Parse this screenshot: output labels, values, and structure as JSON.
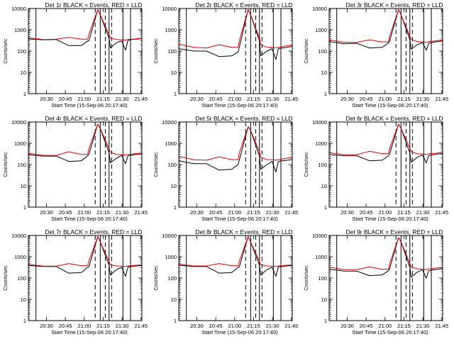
{
  "figure": {
    "panel_titles": [
      "Det 1r BLACK = Events, RED = LLD",
      "Det 2r BLACK = Events, RED = LLD",
      "Det 3r BLACK = Events, RED = LLD",
      "Det 4r BLACK = Events, RED = LLD",
      "Det 5r BLACK = Events, RED = LLD",
      "Det 6r BLACK = Events, RED = LLD",
      "Det 7r BLACK = Events, RED = LLD",
      "Det 8r BLACK = Events, RED = LLD",
      "Det 9r BLACK = Events, RED = LLD"
    ],
    "ylabel": "Counts/sec",
    "xlabel": "Start Time (15-Sep-06 20:17:40)",
    "x_ticks": [
      "20:30",
      "20:45",
      "21:00",
      "21:15",
      "21:30",
      "21:45"
    ],
    "y_ticks": [
      "1",
      "10",
      "100",
      "1000",
      "10000"
    ],
    "colors": {
      "events": "#000000",
      "lld": "#e00000",
      "frame": "#000000"
    }
  },
  "chart_data": [
    {
      "type": "line",
      "title": "Det 1r BLACK = Events, RED = LLD",
      "xlabel": "Start Time (15-Sep-06 20:17:40)",
      "ylabel": "Counts/sec",
      "y_scale": "log",
      "ylim": [
        1,
        10000
      ],
      "xlim_minutes": [
        -2,
        88
      ],
      "x": [
        -2,
        10,
        20,
        30,
        40,
        45,
        46,
        53,
        55,
        62,
        63,
        68,
        72,
        75,
        77,
        80,
        82,
        84,
        86,
        88
      ],
      "series": [
        {
          "name": "Events",
          "values": [
            370,
            340,
            350,
            180,
            180,
            300,
            300,
            9000,
            5000,
            400,
            140,
            250,
            300,
            110,
            320,
            350,
            360,
            360,
            380,
            380
          ]
        },
        {
          "name": "LLD",
          "values": [
            420,
            350,
            360,
            440,
            360,
            360,
            600,
            9000,
            5000,
            600,
            400,
            350,
            340,
            330,
            350,
            360,
            370,
            380,
            390,
            400
          ]
        }
      ]
    },
    {
      "type": "line",
      "title": "Det 2r BLACK = Events, RED = LLD",
      "xlabel": "Start Time (15-Sep-06 20:17:40)",
      "ylabel": "Counts/sec",
      "y_scale": "log",
      "ylim": [
        1,
        10000
      ],
      "xlim_minutes": [
        -2,
        88
      ],
      "x": [
        -2,
        10,
        20,
        30,
        40,
        45,
        46,
        53,
        55,
        62,
        63,
        68,
        72,
        75,
        77,
        80,
        82,
        84,
        86,
        88
      ],
      "series": [
        {
          "name": "Events",
          "values": [
            130,
            100,
            100,
            55,
            60,
            90,
            150,
            9000,
            5000,
            300,
            60,
            100,
            130,
            40,
            130,
            140,
            145,
            150,
            160,
            160
          ]
        },
        {
          "name": "LLD",
          "values": [
            210,
            150,
            140,
            200,
            150,
            150,
            300,
            9000,
            5000,
            400,
            200,
            150,
            150,
            140,
            150,
            160,
            170,
            180,
            180,
            190
          ]
        }
      ]
    },
    {
      "type": "line",
      "title": "Det 3r BLACK = Events, RED = LLD",
      "xlabel": "Start Time (15-Sep-06 20:17:40)",
      "ylabel": "Counts/sec",
      "y_scale": "log",
      "ylim": [
        1,
        10000
      ],
      "xlim_minutes": [
        -2,
        88
      ],
      "x": [
        -2,
        10,
        20,
        30,
        40,
        45,
        46,
        53,
        55,
        62,
        63,
        68,
        72,
        75,
        77,
        80,
        82,
        84,
        86,
        88
      ],
      "series": [
        {
          "name": "Events",
          "values": [
            280,
            220,
            230,
            140,
            150,
            240,
            300,
            9000,
            5000,
            350,
            120,
            200,
            250,
            110,
            230,
            260,
            270,
            280,
            290,
            290
          ]
        },
        {
          "name": "LLD",
          "values": [
            340,
            260,
            260,
            340,
            270,
            270,
            500,
            9000,
            5000,
            500,
            350,
            280,
            270,
            260,
            280,
            290,
            300,
            310,
            320,
            330
          ]
        }
      ]
    },
    {
      "type": "line",
      "title": "Det 4r BLACK = Events, RED = LLD",
      "xlabel": "Start Time (15-Sep-06 20:17:40)",
      "ylabel": "Counts/sec",
      "y_scale": "log",
      "ylim": [
        1,
        10000
      ],
      "xlim_minutes": [
        -2,
        88
      ],
      "x": [
        -2,
        10,
        20,
        30,
        40,
        45,
        46,
        53,
        55,
        62,
        63,
        68,
        72,
        75,
        77,
        80,
        82,
        84,
        86,
        88
      ],
      "series": [
        {
          "name": "Events",
          "values": [
            290,
            250,
            250,
            140,
            150,
            260,
            300,
            8000,
            5000,
            350,
            120,
            200,
            270,
            110,
            260,
            280,
            290,
            300,
            310,
            310
          ]
        },
        {
          "name": "LLD",
          "values": [
            340,
            270,
            270,
            400,
            300,
            300,
            550,
            8000,
            5000,
            550,
            380,
            300,
            290,
            280,
            300,
            310,
            320,
            330,
            340,
            350
          ]
        }
      ]
    },
    {
      "type": "line",
      "title": "Det 5r BLACK = Events, RED = LLD",
      "xlabel": "Start Time (15-Sep-06 20:17:40)",
      "ylabel": "Counts/sec",
      "y_scale": "log",
      "ylim": [
        1,
        10000
      ],
      "xlim_minutes": [
        -2,
        88
      ],
      "x": [
        -2,
        10,
        20,
        30,
        40,
        45,
        46,
        53,
        55,
        62,
        63,
        68,
        72,
        75,
        77,
        80,
        82,
        84,
        86,
        88
      ],
      "series": [
        {
          "name": "Events",
          "values": [
            150,
            110,
            110,
            55,
            60,
            100,
            160,
            6000,
            4000,
            250,
            60,
            100,
            140,
            45,
            140,
            150,
            155,
            160,
            165,
            170
          ]
        },
        {
          "name": "LLD",
          "values": [
            240,
            170,
            160,
            230,
            170,
            170,
            350,
            6000,
            4000,
            400,
            220,
            170,
            170,
            160,
            170,
            180,
            190,
            200,
            210,
            220
          ]
        }
      ]
    },
    {
      "type": "line",
      "title": "Det 6r BLACK = Events, RED = LLD",
      "xlabel": "Start Time (15-Sep-06 20:17:40)",
      "ylabel": "Counts/sec",
      "y_scale": "log",
      "ylim": [
        1,
        10000
      ],
      "xlim_minutes": [
        -2,
        88
      ],
      "x": [
        -2,
        10,
        20,
        30,
        40,
        45,
        46,
        53,
        55,
        62,
        63,
        68,
        72,
        75,
        77,
        80,
        82,
        84,
        86,
        88
      ],
      "series": [
        {
          "name": "Events",
          "values": [
            300,
            260,
            260,
            150,
            160,
            260,
            320,
            8000,
            5000,
            350,
            130,
            220,
            280,
            120,
            270,
            290,
            300,
            310,
            320,
            320
          ]
        },
        {
          "name": "LLD",
          "values": [
            360,
            290,
            290,
            420,
            320,
            320,
            580,
            8000,
            5000,
            580,
            400,
            320,
            310,
            300,
            320,
            330,
            340,
            350,
            360,
            370
          ]
        }
      ]
    },
    {
      "type": "line",
      "title": "Det 7r BLACK = Events, RED = LLD",
      "xlabel": "Start Time (15-Sep-06 20:17:40)",
      "ylabel": "Counts/sec",
      "y_scale": "log",
      "ylim": [
        1,
        10000
      ],
      "xlim_minutes": [
        -2,
        88
      ],
      "x": [
        -2,
        10,
        20,
        30,
        40,
        45,
        46,
        53,
        55,
        62,
        63,
        68,
        72,
        75,
        77,
        80,
        82,
        84,
        86,
        88
      ],
      "series": [
        {
          "name": "Events",
          "values": [
            390,
            350,
            350,
            170,
            180,
            320,
            330,
            9000,
            5000,
            400,
            140,
            250,
            320,
            120,
            330,
            350,
            360,
            370,
            380,
            380
          ]
        },
        {
          "name": "LLD",
          "values": [
            440,
            360,
            360,
            480,
            380,
            380,
            620,
            9000,
            5000,
            600,
            420,
            370,
            360,
            350,
            370,
            380,
            390,
            400,
            410,
            420
          ]
        }
      ]
    },
    {
      "type": "line",
      "title": "Det 8r BLACK = Events, RED = LLD",
      "xlabel": "Start Time (15-Sep-06 20:17:40)",
      "ylabel": "Counts/sec",
      "y_scale": "log",
      "ylim": [
        1,
        10000
      ],
      "xlim_minutes": [
        -2,
        88
      ],
      "x": [
        -2,
        10,
        20,
        30,
        40,
        45,
        46,
        53,
        55,
        62,
        63,
        68,
        72,
        75,
        77,
        80,
        82,
        84,
        86,
        88
      ],
      "series": [
        {
          "name": "Events",
          "values": [
            400,
            350,
            350,
            170,
            180,
            320,
            330,
            9000,
            5000,
            400,
            140,
            250,
            320,
            120,
            330,
            350,
            360,
            370,
            380,
            380
          ]
        },
        {
          "name": "LLD",
          "values": [
            450,
            370,
            370,
            480,
            380,
            380,
            620,
            9000,
            5000,
            600,
            420,
            370,
            360,
            350,
            370,
            380,
            390,
            400,
            410,
            420
          ]
        }
      ]
    },
    {
      "type": "line",
      "title": "Det 9r BLACK = Events, RED = LLD",
      "xlabel": "Start Time (15-Sep-06 20:17:40)",
      "ylabel": "Counts/sec",
      "y_scale": "log",
      "ylim": [
        1,
        10000
      ],
      "xlim_minutes": [
        -2,
        88
      ],
      "x": [
        -2,
        10,
        20,
        30,
        40,
        45,
        46,
        53,
        55,
        62,
        63,
        68,
        72,
        75,
        77,
        80,
        82,
        84,
        86,
        88
      ],
      "series": [
        {
          "name": "Events",
          "values": [
            260,
            210,
            210,
            130,
            140,
            220,
            280,
            8000,
            5000,
            320,
            110,
            190,
            240,
            100,
            220,
            240,
            250,
            260,
            270,
            270
          ]
        },
        {
          "name": "LLD",
          "values": [
            320,
            250,
            250,
            330,
            260,
            260,
            480,
            8000,
            5000,
            480,
            330,
            270,
            260,
            250,
            270,
            280,
            290,
            300,
            310,
            320
          ]
        }
      ]
    }
  ]
}
